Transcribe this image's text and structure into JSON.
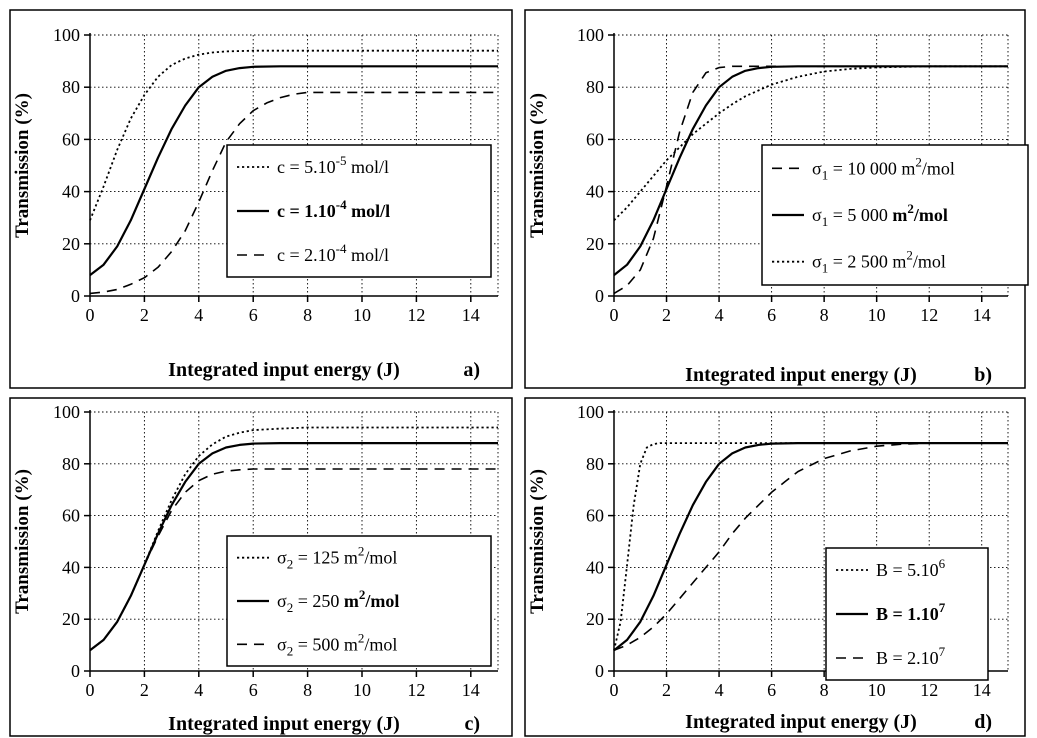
{
  "chart_data": [
    {
      "type": "line",
      "panel_label": "a)",
      "xlabel": "Integrated input energy (J)",
      "ylabel": "Transmission (%)",
      "xlim": [
        0,
        15
      ],
      "ylim": [
        0,
        100
      ],
      "xticks": [
        "0",
        "2",
        "4",
        "6",
        "8",
        "10",
        "12",
        "14"
      ],
      "yticks": [
        "0",
        "20",
        "40",
        "60",
        "80",
        "100"
      ],
      "grid": true,
      "legend_position": "center-right",
      "series": [
        {
          "legend": {
            "pre": "c = 5.10",
            "sup": "-5",
            "post": " mol/l",
            "bold": false
          },
          "style": "dotted",
          "x": [
            0,
            0.5,
            1,
            1.5,
            2,
            2.5,
            3,
            3.5,
            4,
            4.5,
            5,
            6,
            7,
            8,
            10,
            12,
            15
          ],
          "y": [
            29,
            42,
            56,
            68,
            77,
            84,
            88.5,
            91,
            92.5,
            93.3,
            93.7,
            94,
            94,
            94,
            94,
            94,
            94
          ]
        },
        {
          "legend": {
            "pre": "c = 1.10",
            "sup": "-4",
            "post": " mol/l",
            "bold": true
          },
          "style": "solid",
          "x": [
            0,
            0.5,
            1,
            1.5,
            2,
            2.5,
            3,
            3.5,
            4,
            4.5,
            5,
            5.5,
            6,
            7,
            8,
            10,
            12,
            15
          ],
          "y": [
            8,
            12,
            19,
            29,
            41,
            53,
            64,
            73,
            80,
            84,
            86.3,
            87.3,
            87.8,
            88,
            88,
            88,
            88,
            88
          ]
        },
        {
          "legend": {
            "pre": "c = 2.10",
            "sup": "-4",
            "post": " mol/l",
            "bold": false
          },
          "style": "dashed",
          "x": [
            0,
            0.5,
            1,
            1.5,
            2,
            2.5,
            3,
            3.5,
            4,
            4.5,
            5,
            5.5,
            6,
            6.5,
            7,
            7.5,
            8,
            10,
            12,
            15
          ],
          "y": [
            1,
            1.5,
            2.5,
            4.5,
            7,
            11,
            17,
            25,
            36,
            48,
            59,
            66,
            71,
            74,
            76,
            77.3,
            78,
            78,
            78,
            78
          ]
        }
      ]
    },
    {
      "type": "line",
      "panel_label": "b)",
      "xlabel": "Integrated input energy (J)",
      "ylabel": "Transmission (%)",
      "xlim": [
        0,
        15
      ],
      "ylim": [
        0,
        100
      ],
      "xticks": [
        "0",
        "2",
        "4",
        "6",
        "8",
        "10",
        "12",
        "14"
      ],
      "yticks": [
        "0",
        "20",
        "40",
        "60",
        "80",
        "100"
      ],
      "grid": true,
      "legend_position": "center-right",
      "series": [
        {
          "legend": {
            "pre": "σ",
            "sub": "1",
            "mid": " = 10 000 m",
            "sup": "2",
            "post": "/mol",
            "bold": false
          },
          "style": "dashed",
          "x": [
            0,
            0.5,
            1,
            1.5,
            2,
            2.5,
            3,
            3.5,
            4,
            4.5,
            5,
            6,
            8,
            15
          ],
          "y": [
            1,
            4,
            10,
            22,
            42,
            63,
            78,
            85.5,
            87.5,
            88,
            88,
            88,
            88,
            88
          ]
        },
        {
          "legend": {
            "pre": "σ",
            "sub": "1",
            "mid": " = 5 000 ",
            "midbold": "m",
            "sup": "2",
            "post": "/mol",
            "bold": true
          },
          "style": "solid",
          "x": [
            0,
            0.5,
            1,
            1.5,
            2,
            2.5,
            3,
            3.5,
            4,
            4.5,
            5,
            5.5,
            6,
            7,
            8,
            10,
            12,
            15
          ],
          "y": [
            8,
            12,
            19,
            29,
            41,
            53,
            64,
            73,
            80,
            84,
            86.3,
            87.3,
            87.8,
            88,
            88,
            88,
            88,
            88
          ]
        },
        {
          "legend": {
            "pre": "σ",
            "sub": "1",
            "mid": " = 2 500 m",
            "sup": "2",
            "post": "/mol",
            "bold": false
          },
          "style": "dotted",
          "x": [
            0,
            0.5,
            1,
            1.5,
            2,
            2.5,
            3,
            3.5,
            4,
            4.5,
            5,
            6,
            7,
            8,
            9,
            10,
            12,
            15
          ],
          "y": [
            29,
            34,
            40,
            46,
            52,
            57,
            62,
            66,
            70,
            73.5,
            76.5,
            81,
            84,
            86,
            87,
            87.6,
            88,
            88
          ]
        }
      ]
    },
    {
      "type": "line",
      "panel_label": "c)",
      "xlabel": "Integrated input energy (J)",
      "ylabel": "Transmission (%)",
      "xlim": [
        0,
        15
      ],
      "ylim": [
        0,
        100
      ],
      "xticks": [
        "0",
        "2",
        "4",
        "6",
        "8",
        "10",
        "12",
        "14"
      ],
      "yticks": [
        "0",
        "20",
        "40",
        "60",
        "80",
        "100"
      ],
      "grid": true,
      "legend_position": "center-right",
      "series": [
        {
          "legend": {
            "pre": "σ",
            "sub": "2",
            "mid": " = 125 m",
            "sup": "2",
            "post": "/mol",
            "bold": false
          },
          "style": "dotted",
          "x": [
            0,
            0.5,
            1,
            1.5,
            2,
            2.5,
            3,
            3.5,
            4,
            4.5,
            5,
            5.5,
            6,
            7,
            8,
            10,
            12,
            15
          ],
          "y": [
            8,
            12,
            19,
            29,
            41,
            54,
            66,
            76,
            83,
            87.5,
            90.5,
            92,
            93,
            93.6,
            94,
            94,
            94,
            94
          ]
        },
        {
          "legend": {
            "pre": "σ",
            "sub": "2",
            "mid": " = 250 ",
            "midbold": "m",
            "sup": "2",
            "post": "/mol",
            "bold": true
          },
          "style": "solid",
          "x": [
            0,
            0.5,
            1,
            1.5,
            2,
            2.5,
            3,
            3.5,
            4,
            4.5,
            5,
            5.5,
            6,
            7,
            8,
            10,
            12,
            15
          ],
          "y": [
            8,
            12,
            19,
            29,
            41,
            53,
            64,
            73,
            80,
            84,
            86.3,
            87.3,
            87.8,
            88,
            88,
            88,
            88,
            88
          ]
        },
        {
          "legend": {
            "pre": "σ",
            "sub": "2",
            "mid": " = 500 m",
            "sup": "2",
            "post": "/mol",
            "bold": false
          },
          "style": "dashed",
          "x": [
            0,
            0.5,
            1,
            1.5,
            2,
            2.5,
            3,
            3.5,
            4,
            4.5,
            5,
            5.5,
            6,
            7,
            8,
            10,
            12,
            15
          ],
          "y": [
            8,
            12,
            19,
            29,
            41,
            52,
            62,
            69,
            73.5,
            76,
            77.2,
            77.7,
            78,
            78,
            78,
            78,
            78,
            78
          ]
        }
      ]
    },
    {
      "type": "line",
      "panel_label": "d)",
      "xlabel": "Integrated input energy (J)",
      "ylabel": "Transmission (%)",
      "xlim": [
        0,
        15
      ],
      "ylim": [
        0,
        100
      ],
      "xticks": [
        "0",
        "2",
        "4",
        "6",
        "8",
        "10",
        "12",
        "14"
      ],
      "yticks": [
        "0",
        "20",
        "40",
        "60",
        "80",
        "100"
      ],
      "grid": true,
      "legend_position": "center-right",
      "series": [
        {
          "legend": {
            "pre": "B = 5.10",
            "sup": "6",
            "post": "",
            "bold": false
          },
          "style": "dotted",
          "x": [
            0,
            0.25,
            0.5,
            0.75,
            1,
            1.25,
            1.5,
            1.75,
            2,
            2.5,
            3,
            4,
            6,
            15
          ],
          "y": [
            8,
            19,
            41,
            64,
            80,
            86.3,
            87.6,
            88,
            88,
            88,
            88,
            88,
            88,
            88
          ]
        },
        {
          "legend": {
            "pre": "B = 1.10",
            "sup": "7",
            "post": "",
            "bold": true
          },
          "style": "solid",
          "x": [
            0,
            0.5,
            1,
            1.5,
            2,
            2.5,
            3,
            3.5,
            4,
            4.5,
            5,
            5.5,
            6,
            7,
            8,
            10,
            12,
            15
          ],
          "y": [
            8,
            12,
            19,
            29,
            41,
            53,
            64,
            73,
            80,
            84,
            86.3,
            87.3,
            87.8,
            88,
            88,
            88,
            88,
            88
          ]
        },
        {
          "legend": {
            "pre": "B = 2.10",
            "sup": "7",
            "post": "",
            "bold": false
          },
          "style": "dashed",
          "x": [
            0,
            0.5,
            1,
            1.5,
            2,
            2.5,
            3,
            3.5,
            4,
            4.5,
            5,
            5.5,
            6,
            6.5,
            7,
            8,
            9,
            10,
            11,
            12,
            15
          ],
          "y": [
            8,
            10,
            13,
            17,
            22,
            28,
            34,
            40,
            46,
            53,
            59,
            64,
            69,
            73,
            77,
            82,
            85,
            86.8,
            87.6,
            88,
            88
          ]
        }
      ]
    }
  ]
}
